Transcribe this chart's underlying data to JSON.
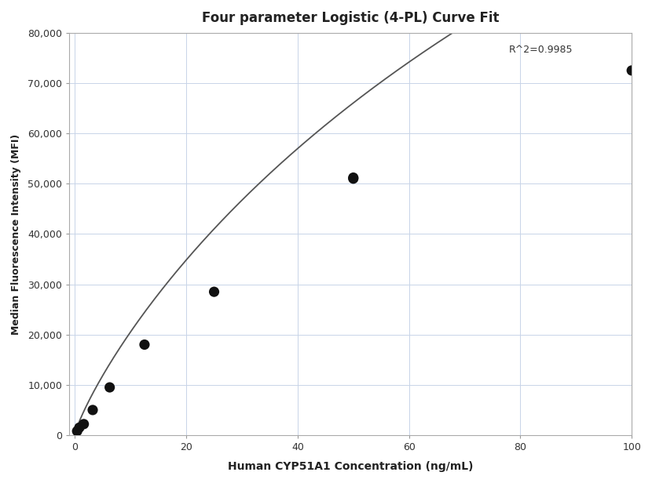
{
  "title": "Four parameter Logistic (4-PL) Curve Fit",
  "xlabel": "Human CYP51A1 Concentration (ng/mL)",
  "ylabel": "Median Fluorescence Intensity (MFI)",
  "scatter_x": [
    0.4,
    0.8,
    1.6,
    3.2,
    6.25,
    12.5,
    25,
    50,
    50,
    100
  ],
  "scatter_y": [
    800,
    1500,
    2200,
    5000,
    9500,
    18000,
    28500,
    51000,
    51200,
    72500
  ],
  "xlim": [
    -1,
    100
  ],
  "ylim": [
    0,
    80000
  ],
  "yticks": [
    0,
    10000,
    20000,
    30000,
    40000,
    50000,
    60000,
    70000,
    80000
  ],
  "xticks": [
    0,
    20,
    40,
    60,
    80,
    100
  ],
  "r_squared": "R^2=0.9985",
  "curve_color": "#555555",
  "scatter_color": "#111111",
  "background_color": "#ffffff",
  "grid_color": "#c8d4e8",
  "4pl_A": 200,
  "4pl_B": 0.85,
  "4pl_C": 200,
  "4pl_D": 280000,
  "figwidth": 8.3,
  "figheight": 6.16,
  "dpi": 100
}
